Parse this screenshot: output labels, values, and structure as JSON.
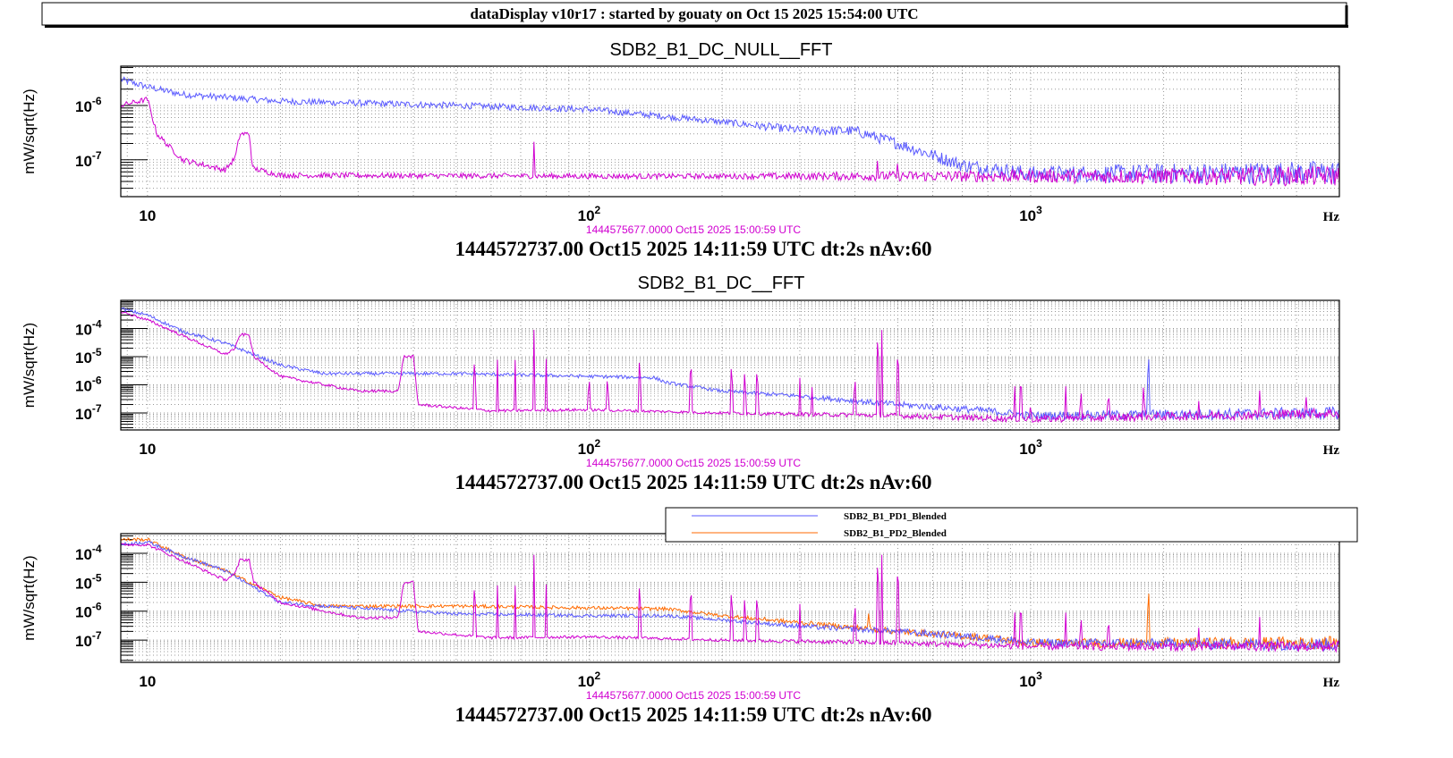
{
  "header": {
    "title": "dataDisplay v10r17 : started by gouaty on Oct 15 2025 15:54:00 UTC"
  },
  "colors": {
    "blue": "#5a5aff",
    "magenta": "#d000d0",
    "orange": "#ff6a00",
    "grid": "#999999"
  },
  "chart_data": [
    {
      "type": "line",
      "title": "SDB2_B1_DC_NULL__FFT",
      "xlabel": "Hz",
      "ylabel": "mW/sqrt(Hz)",
      "xscale": "log",
      "yscale": "log",
      "xlim": [
        8.7,
        5000
      ],
      "ylim": [
        2.1e-08,
        5.3e-06
      ],
      "xticks": [
        {
          "base": "10",
          "exp": ""
        },
        {
          "base": "10",
          "exp": "2"
        },
        {
          "base": "10",
          "exp": "3"
        }
      ],
      "xtick_values": [
        10,
        100,
        1000
      ],
      "yticks": [
        {
          "base": "10",
          "exp": "-6",
          "value": 1e-06
        },
        {
          "base": "10",
          "exp": "-7",
          "value": 1e-07
        }
      ],
      "grid": true,
      "date_label": "1444575677.0000 Oct15 2025 15:00:59 UTC",
      "footer": "1444572737.00 Oct15 2025 14:11:59 UTC dt:2s nAv:60",
      "series": [
        {
          "name": "blue",
          "color": "#5a5aff",
          "noise": 0.06,
          "points": [
            [
              8.7,
              3e-06
            ],
            [
              10,
              2.2e-06
            ],
            [
              12,
              1.6e-06
            ],
            [
              20,
              1.2e-06
            ],
            [
              50,
              1e-06
            ],
            [
              100,
              8.5e-07
            ],
            [
              200,
              5e-07
            ],
            [
              300,
              3.5e-07
            ],
            [
              400,
              3.4e-07
            ],
            [
              500,
              2e-07
            ],
            [
              700,
              8e-08
            ],
            [
              1000,
              5.5e-08
            ],
            [
              5000,
              5.8e-08
            ]
          ],
          "peaks": [
            [
              390,
              4.5e-07
            ]
          ]
        },
        {
          "name": "magenta",
          "color": "#d000d0",
          "noise": 0.05,
          "points": [
            [
              8.7,
              1e-06
            ],
            [
              10,
              1.3e-06
            ],
            [
              10.5,
              3e-07
            ],
            [
              12,
              1e-07
            ],
            [
              15,
              6.5e-08
            ],
            [
              15.8,
              1.1e-07
            ],
            [
              16.2,
              3e-07
            ],
            [
              17,
              3e-07
            ],
            [
              17.3,
              7e-08
            ],
            [
              20,
              5.2e-08
            ],
            [
              100,
              5e-08
            ],
            [
              5000,
              5e-08
            ]
          ],
          "peaks": [
            [
              75,
              2.4e-07
            ],
            [
              450,
              1.2e-07
            ],
            [
              500,
              1.6e-07
            ]
          ]
        }
      ]
    },
    {
      "type": "line",
      "title": "SDB2_B1_DC__FFT",
      "xlabel": "Hz",
      "ylabel": "mW/sqrt(Hz)",
      "xscale": "log",
      "yscale": "log",
      "xlim": [
        8.7,
        5000
      ],
      "ylim": [
        2.5e-08,
        0.001
      ],
      "xticks": [
        {
          "base": "10",
          "exp": ""
        },
        {
          "base": "10",
          "exp": "2"
        },
        {
          "base": "10",
          "exp": "3"
        }
      ],
      "xtick_values": [
        10,
        100,
        1000
      ],
      "yticks": [
        {
          "base": "10",
          "exp": "-4",
          "value": 0.0001
        },
        {
          "base": "10",
          "exp": "-5",
          "value": 1e-05
        },
        {
          "base": "10",
          "exp": "-6",
          "value": 1e-06
        },
        {
          "base": "10",
          "exp": "-7",
          "value": 1e-07
        }
      ],
      "grid": true,
      "date_label": "1444575677.0000 Oct15 2025 15:00:59 UTC",
      "footer": "1444572737.00 Oct15 2025 14:11:59 UTC dt:2s nAv:60",
      "series": [
        {
          "name": "blue",
          "color": "#5a5aff",
          "noise": 0.06,
          "points": [
            [
              8.7,
              0.0005
            ],
            [
              10,
              0.0003
            ],
            [
              12,
              8e-05
            ],
            [
              15,
              3e-05
            ],
            [
              20,
              5e-06
            ],
            [
              25,
              2.5e-06
            ],
            [
              50,
              2.5e-06
            ],
            [
              100,
              2e-06
            ],
            [
              140,
              1.8e-06
            ],
            [
              150,
              1.2e-06
            ],
            [
              200,
              6e-07
            ],
            [
              300,
              4e-07
            ],
            [
              500,
              2e-07
            ],
            [
              800,
              1.2e-07
            ],
            [
              1000,
              8e-08
            ],
            [
              5000,
              1e-07
            ]
          ],
          "peaks": [
            [
              1850,
              1e-05
            ]
          ]
        },
        {
          "name": "magenta",
          "color": "#d000d0",
          "noise": 0.05,
          "points": [
            [
              8.7,
              0.0004
            ],
            [
              10,
              0.0002
            ],
            [
              15,
              1.2e-05
            ],
            [
              15.8,
              2e-05
            ],
            [
              16.2,
              6e-05
            ],
            [
              17,
              6e-05
            ],
            [
              17.4,
              1e-05
            ],
            [
              20,
              2e-06
            ],
            [
              30,
              6e-07
            ],
            [
              37,
              6e-07
            ],
            [
              38,
              1e-05
            ],
            [
              40,
              1e-05
            ],
            [
              41,
              2e-07
            ],
            [
              60,
              1.2e-07
            ],
            [
              100,
              1.3e-07
            ],
            [
              200,
              1e-07
            ],
            [
              500,
              8e-08
            ],
            [
              1000,
              6e-08
            ],
            [
              5000,
              1e-07
            ]
          ],
          "peaks": [
            [
              55,
              8e-06
            ],
            [
              62,
              8e-06
            ],
            [
              68,
              8e-06
            ],
            [
              75,
              0.0001
            ],
            [
              80,
              1e-05
            ],
            [
              100,
              2e-06
            ],
            [
              110,
              2e-06
            ],
            [
              130,
              8e-06
            ],
            [
              170,
              7e-06
            ],
            [
              210,
              5e-06
            ],
            [
              225,
              3e-06
            ],
            [
              240,
              4e-06
            ],
            [
              300,
              2e-06
            ],
            [
              320,
              1e-06
            ],
            [
              400,
              2e-06
            ],
            [
              450,
              4e-05
            ],
            [
              460,
              0.0001
            ],
            [
              500,
              1.5e-05
            ],
            [
              920,
              1e-06
            ],
            [
              950,
              2e-06
            ],
            [
              1000,
              3e-07
            ],
            [
              1200,
              1e-06
            ],
            [
              1300,
              7e-07
            ],
            [
              1500,
              7e-07
            ],
            [
              1800,
              1e-06
            ],
            [
              2400,
              3e-07
            ],
            [
              3300,
              7e-07
            ],
            [
              4200,
              5e-07
            ]
          ]
        }
      ]
    },
    {
      "type": "line",
      "title": "",
      "xlabel": "Hz",
      "ylabel": "mW/sqrt(Hz)",
      "xscale": "log",
      "yscale": "log",
      "xlim": [
        8.7,
        5000
      ],
      "ylim": [
        1.7e-08,
        0.00048
      ],
      "xticks": [
        {
          "base": "10",
          "exp": ""
        },
        {
          "base": "10",
          "exp": "2"
        },
        {
          "base": "10",
          "exp": "3"
        }
      ],
      "xtick_values": [
        10,
        100,
        1000
      ],
      "yticks": [
        {
          "base": "10",
          "exp": "-4",
          "value": 0.0001
        },
        {
          "base": "10",
          "exp": "-5",
          "value": 1e-05
        },
        {
          "base": "10",
          "exp": "-6",
          "value": 1e-06
        },
        {
          "base": "10",
          "exp": "-7",
          "value": 1e-07
        }
      ],
      "grid": true,
      "legend": {
        "placement": "top-right",
        "entries": [
          {
            "label": "SDB2_B1_PD1_Blended",
            "color": "#5a5aff"
          },
          {
            "label": "SDB2_B1_PD2_Blended",
            "color": "#ff6a00"
          }
        ]
      },
      "date_label": "1444575677.0000 Oct15 2025 15:00:59 UTC",
      "footer": "1444572737.00 Oct15 2025 14:11:59 UTC dt:2s nAv:60",
      "series": [
        {
          "name": "SDB2_B1_PD2_Blended",
          "color": "#ff6a00",
          "noise": 0.06,
          "points": [
            [
              8.7,
              0.0003
            ],
            [
              10,
              0.0003
            ],
            [
              12,
              8e-05
            ],
            [
              15,
              2.5e-05
            ],
            [
              20,
              3e-06
            ],
            [
              25,
              1.5e-06
            ],
            [
              50,
              1.5e-06
            ],
            [
              100,
              1.3e-06
            ],
            [
              150,
              1.2e-06
            ],
            [
              200,
              7e-07
            ],
            [
              300,
              4e-07
            ],
            [
              500,
              2e-07
            ],
            [
              800,
              1.2e-07
            ],
            [
              1000,
              8e-08
            ],
            [
              5000,
              8e-08
            ]
          ],
          "peaks": [
            [
              1850,
              5e-06
            ],
            [
              430,
              1.3e-06
            ]
          ]
        },
        {
          "name": "SDB2_B1_PD1_Blended",
          "color": "#5a5aff",
          "noise": 0.06,
          "points": [
            [
              8.7,
              0.0002
            ],
            [
              10,
              0.00025
            ],
            [
              12,
              8e-05
            ],
            [
              15,
              2.5e-05
            ],
            [
              20,
              2e-06
            ],
            [
              25,
              1.5e-06
            ],
            [
              50,
              8e-07
            ],
            [
              100,
              7e-07
            ],
            [
              150,
              7e-07
            ],
            [
              200,
              5e-07
            ],
            [
              300,
              3e-07
            ],
            [
              500,
              2e-07
            ],
            [
              800,
              1.2e-07
            ],
            [
              1000,
              8e-08
            ],
            [
              5000,
              7e-08
            ]
          ],
          "peaks": []
        },
        {
          "name": "magenta",
          "color": "#d000d0",
          "noise": 0.05,
          "points": [
            [
              8.7,
              0.0002
            ],
            [
              10,
              0.0002
            ],
            [
              15,
              1.2e-05
            ],
            [
              15.8,
              2e-05
            ],
            [
              16.2,
              6e-05
            ],
            [
              17,
              6e-05
            ],
            [
              17.4,
              1e-05
            ],
            [
              20,
              2e-06
            ],
            [
              30,
              6e-07
            ],
            [
              37,
              6e-07
            ],
            [
              38,
              1e-05
            ],
            [
              40,
              1e-05
            ],
            [
              41,
              2e-07
            ],
            [
              60,
              1.2e-07
            ],
            [
              100,
              1.3e-07
            ],
            [
              200,
              1e-07
            ],
            [
              500,
              8e-08
            ],
            [
              1000,
              6e-08
            ],
            [
              5000,
              6e-08
            ]
          ],
          "peaks": [
            [
              55,
              8e-06
            ],
            [
              62,
              8e-06
            ],
            [
              68,
              8e-06
            ],
            [
              75,
              0.0001
            ],
            [
              80,
              1e-05
            ],
            [
              130,
              8e-06
            ],
            [
              170,
              7e-06
            ],
            [
              210,
              5e-06
            ],
            [
              225,
              3e-06
            ],
            [
              240,
              4e-06
            ],
            [
              300,
              2e-06
            ],
            [
              400,
              2e-06
            ],
            [
              450,
              4e-05
            ],
            [
              460,
              0.0001
            ],
            [
              500,
              3e-05
            ],
            [
              920,
              1e-06
            ],
            [
              950,
              2e-06
            ],
            [
              1200,
              1e-06
            ],
            [
              1300,
              7e-07
            ],
            [
              1500,
              7e-07
            ],
            [
              2400,
              3e-07
            ],
            [
              3300,
              7e-07
            ]
          ]
        }
      ]
    }
  ]
}
